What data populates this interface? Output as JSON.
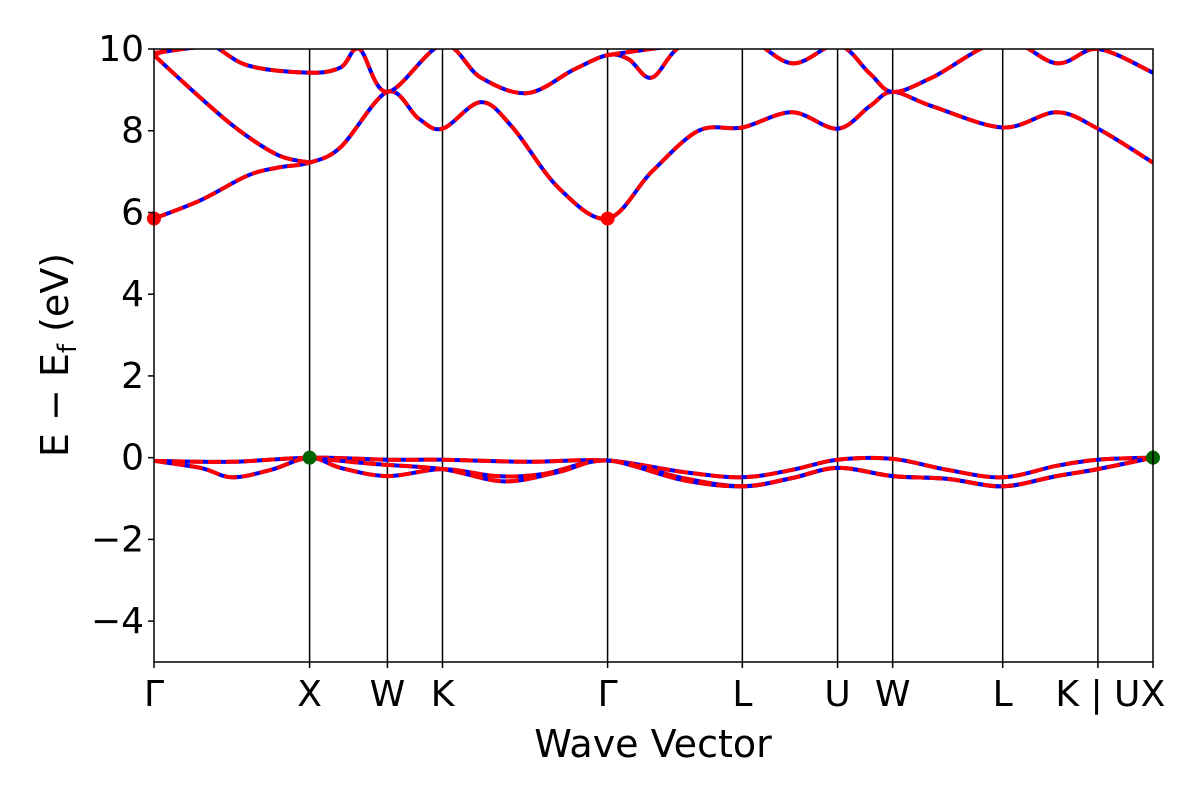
{
  "chart_data": {
    "type": "line",
    "title": "",
    "xlabel": "Wave Vector",
    "ylabel_main": "E − E",
    "ylabel_sub": "f",
    "ylabel_unit": " (eV)",
    "ylim": [
      -5,
      10
    ],
    "yticks": [
      10,
      8,
      6,
      4,
      2,
      0,
      -2,
      -4
    ],
    "ytick_labels": [
      "10",
      "8",
      "6",
      "4",
      "2",
      "0",
      "−2",
      "−4"
    ],
    "xlim": [
      0,
      6.42
    ],
    "kpoints": [
      {
        "label": "Γ",
        "x": 0.0
      },
      {
        "label": "X",
        "x": 1.0
      },
      {
        "label": "W",
        "x": 1.5
      },
      {
        "label": "K",
        "x": 1.854
      },
      {
        "label": "Γ",
        "x": 2.915
      },
      {
        "label": "L",
        "x": 3.781
      },
      {
        "label": "U",
        "x": 4.393
      },
      {
        "label": "W",
        "x": 4.747
      },
      {
        "label": "L",
        "x": 5.454
      },
      {
        "label": "K | U",
        "x": 6.066
      },
      {
        "label": "X",
        "x": 6.42
      }
    ],
    "colors": {
      "solid": "#0000ff",
      "dashed": "#ff0000",
      "cbm_marker": "#ff0000",
      "vbm_marker": "#006400"
    },
    "series": [
      {
        "points": [
          [
            0,
            5.85
          ],
          [
            0.3,
            6.3
          ],
          [
            0.6,
            6.9
          ],
          [
            0.8,
            7.1
          ],
          [
            1.0,
            7.22
          ],
          [
            1.2,
            7.6
          ],
          [
            1.5,
            8.95
          ],
          [
            1.7,
            8.3
          ],
          [
            1.854,
            8.05
          ],
          [
            2.1,
            8.7
          ],
          [
            2.3,
            8.1
          ],
          [
            2.6,
            6.6
          ],
          [
            2.915,
            5.85
          ],
          [
            3.2,
            7.0
          ],
          [
            3.5,
            8.0
          ],
          [
            3.781,
            8.08
          ],
          [
            4.1,
            8.45
          ],
          [
            4.393,
            8.05
          ],
          [
            4.6,
            8.6
          ],
          [
            4.747,
            8.95
          ],
          [
            5.0,
            8.6
          ],
          [
            5.454,
            8.08
          ],
          [
            5.8,
            8.45
          ],
          [
            6.066,
            8.05
          ],
          [
            6.42,
            7.22
          ]
        ]
      },
      {
        "points": [
          [
            0,
            9.85
          ],
          [
            0.3,
            8.8
          ],
          [
            0.55,
            8.0
          ],
          [
            0.8,
            7.4
          ],
          [
            1.0,
            7.22
          ]
        ]
      },
      {
        "points": [
          [
            0,
            9.85
          ],
          [
            0.3,
            10.2
          ],
          [
            0.6,
            9.6
          ],
          [
            1.0,
            9.42
          ],
          [
            1.2,
            9.55
          ],
          [
            1.32,
            10.0
          ],
          [
            1.5,
            8.95
          ],
          [
            1.854,
            10.1
          ],
          [
            2.1,
            9.3
          ],
          [
            2.4,
            8.92
          ],
          [
            2.7,
            9.5
          ],
          [
            2.915,
            9.85
          ],
          [
            3.05,
            9.75
          ],
          [
            3.2,
            9.3
          ],
          [
            3.4,
            10.1
          ],
          [
            3.781,
            10.3
          ],
          [
            4.1,
            9.65
          ],
          [
            4.393,
            10.1
          ],
          [
            4.6,
            9.4
          ],
          [
            4.747,
            8.95
          ],
          [
            5.0,
            9.3
          ],
          [
            5.454,
            10.2
          ],
          [
            5.8,
            9.65
          ],
          [
            6.066,
            10.0
          ],
          [
            6.42,
            9.42
          ]
        ]
      },
      {
        "points": [
          [
            0,
            9.9
          ],
          [
            0.3,
            10.05
          ],
          [
            0.6,
            10.1
          ]
        ]
      },
      {
        "points": [
          [
            2.915,
            9.85
          ],
          [
            3.3,
            10.05
          ],
          [
            3.781,
            10.2
          ]
        ]
      },
      {
        "points": [
          [
            0,
            -0.08
          ],
          [
            0.5,
            -0.1
          ],
          [
            1.0,
            0.0
          ],
          [
            1.5,
            -0.05
          ],
          [
            1.854,
            -0.05
          ],
          [
            2.4,
            -0.1
          ],
          [
            2.915,
            -0.07
          ],
          [
            3.4,
            -0.35
          ],
          [
            3.781,
            -0.48
          ],
          [
            4.1,
            -0.3
          ],
          [
            4.393,
            -0.05
          ],
          [
            4.747,
            -0.03
          ],
          [
            5.1,
            -0.3
          ],
          [
            5.454,
            -0.48
          ],
          [
            5.8,
            -0.2
          ],
          [
            6.066,
            -0.05
          ],
          [
            6.42,
            0.0
          ]
        ]
      },
      {
        "points": [
          [
            0,
            -0.08
          ],
          [
            0.3,
            -0.25
          ],
          [
            0.5,
            -0.48
          ],
          [
            0.75,
            -0.3
          ],
          [
            1.0,
            0.0
          ],
          [
            1.2,
            -0.25
          ],
          [
            1.5,
            -0.45
          ],
          [
            1.854,
            -0.28
          ],
          [
            2.2,
            -0.45
          ],
          [
            2.5,
            -0.4
          ],
          [
            2.915,
            -0.07
          ],
          [
            3.4,
            -0.5
          ],
          [
            3.781,
            -0.7
          ],
          [
            4.1,
            -0.5
          ],
          [
            4.393,
            -0.25
          ],
          [
            4.747,
            -0.45
          ],
          [
            5.1,
            -0.52
          ],
          [
            5.454,
            -0.7
          ],
          [
            5.8,
            -0.45
          ],
          [
            6.066,
            -0.28
          ],
          [
            6.42,
            0.0
          ]
        ]
      },
      {
        "points": [
          [
            1.0,
            0.0
          ],
          [
            1.4,
            -0.15
          ],
          [
            1.854,
            -0.28
          ],
          [
            2.25,
            -0.58
          ],
          [
            2.6,
            -0.35
          ],
          [
            2.915,
            -0.07
          ],
          [
            3.4,
            -0.55
          ],
          [
            3.781,
            -0.7
          ],
          [
            4.1,
            -0.5
          ],
          [
            4.393,
            -0.25
          ],
          [
            4.747,
            -0.45
          ],
          [
            5.1,
            -0.52
          ],
          [
            5.454,
            -0.7
          ],
          [
            5.8,
            -0.45
          ],
          [
            6.066,
            -0.28
          ],
          [
            6.42,
            0.0
          ]
        ]
      }
    ],
    "markers": [
      {
        "x": 0.0,
        "y": 5.85,
        "type": "cbm"
      },
      {
        "x": 2.915,
        "y": 5.85,
        "type": "cbm"
      },
      {
        "x": 1.0,
        "y": 0.0,
        "type": "vbm"
      },
      {
        "x": 6.42,
        "y": 0.0,
        "type": "vbm"
      }
    ]
  }
}
